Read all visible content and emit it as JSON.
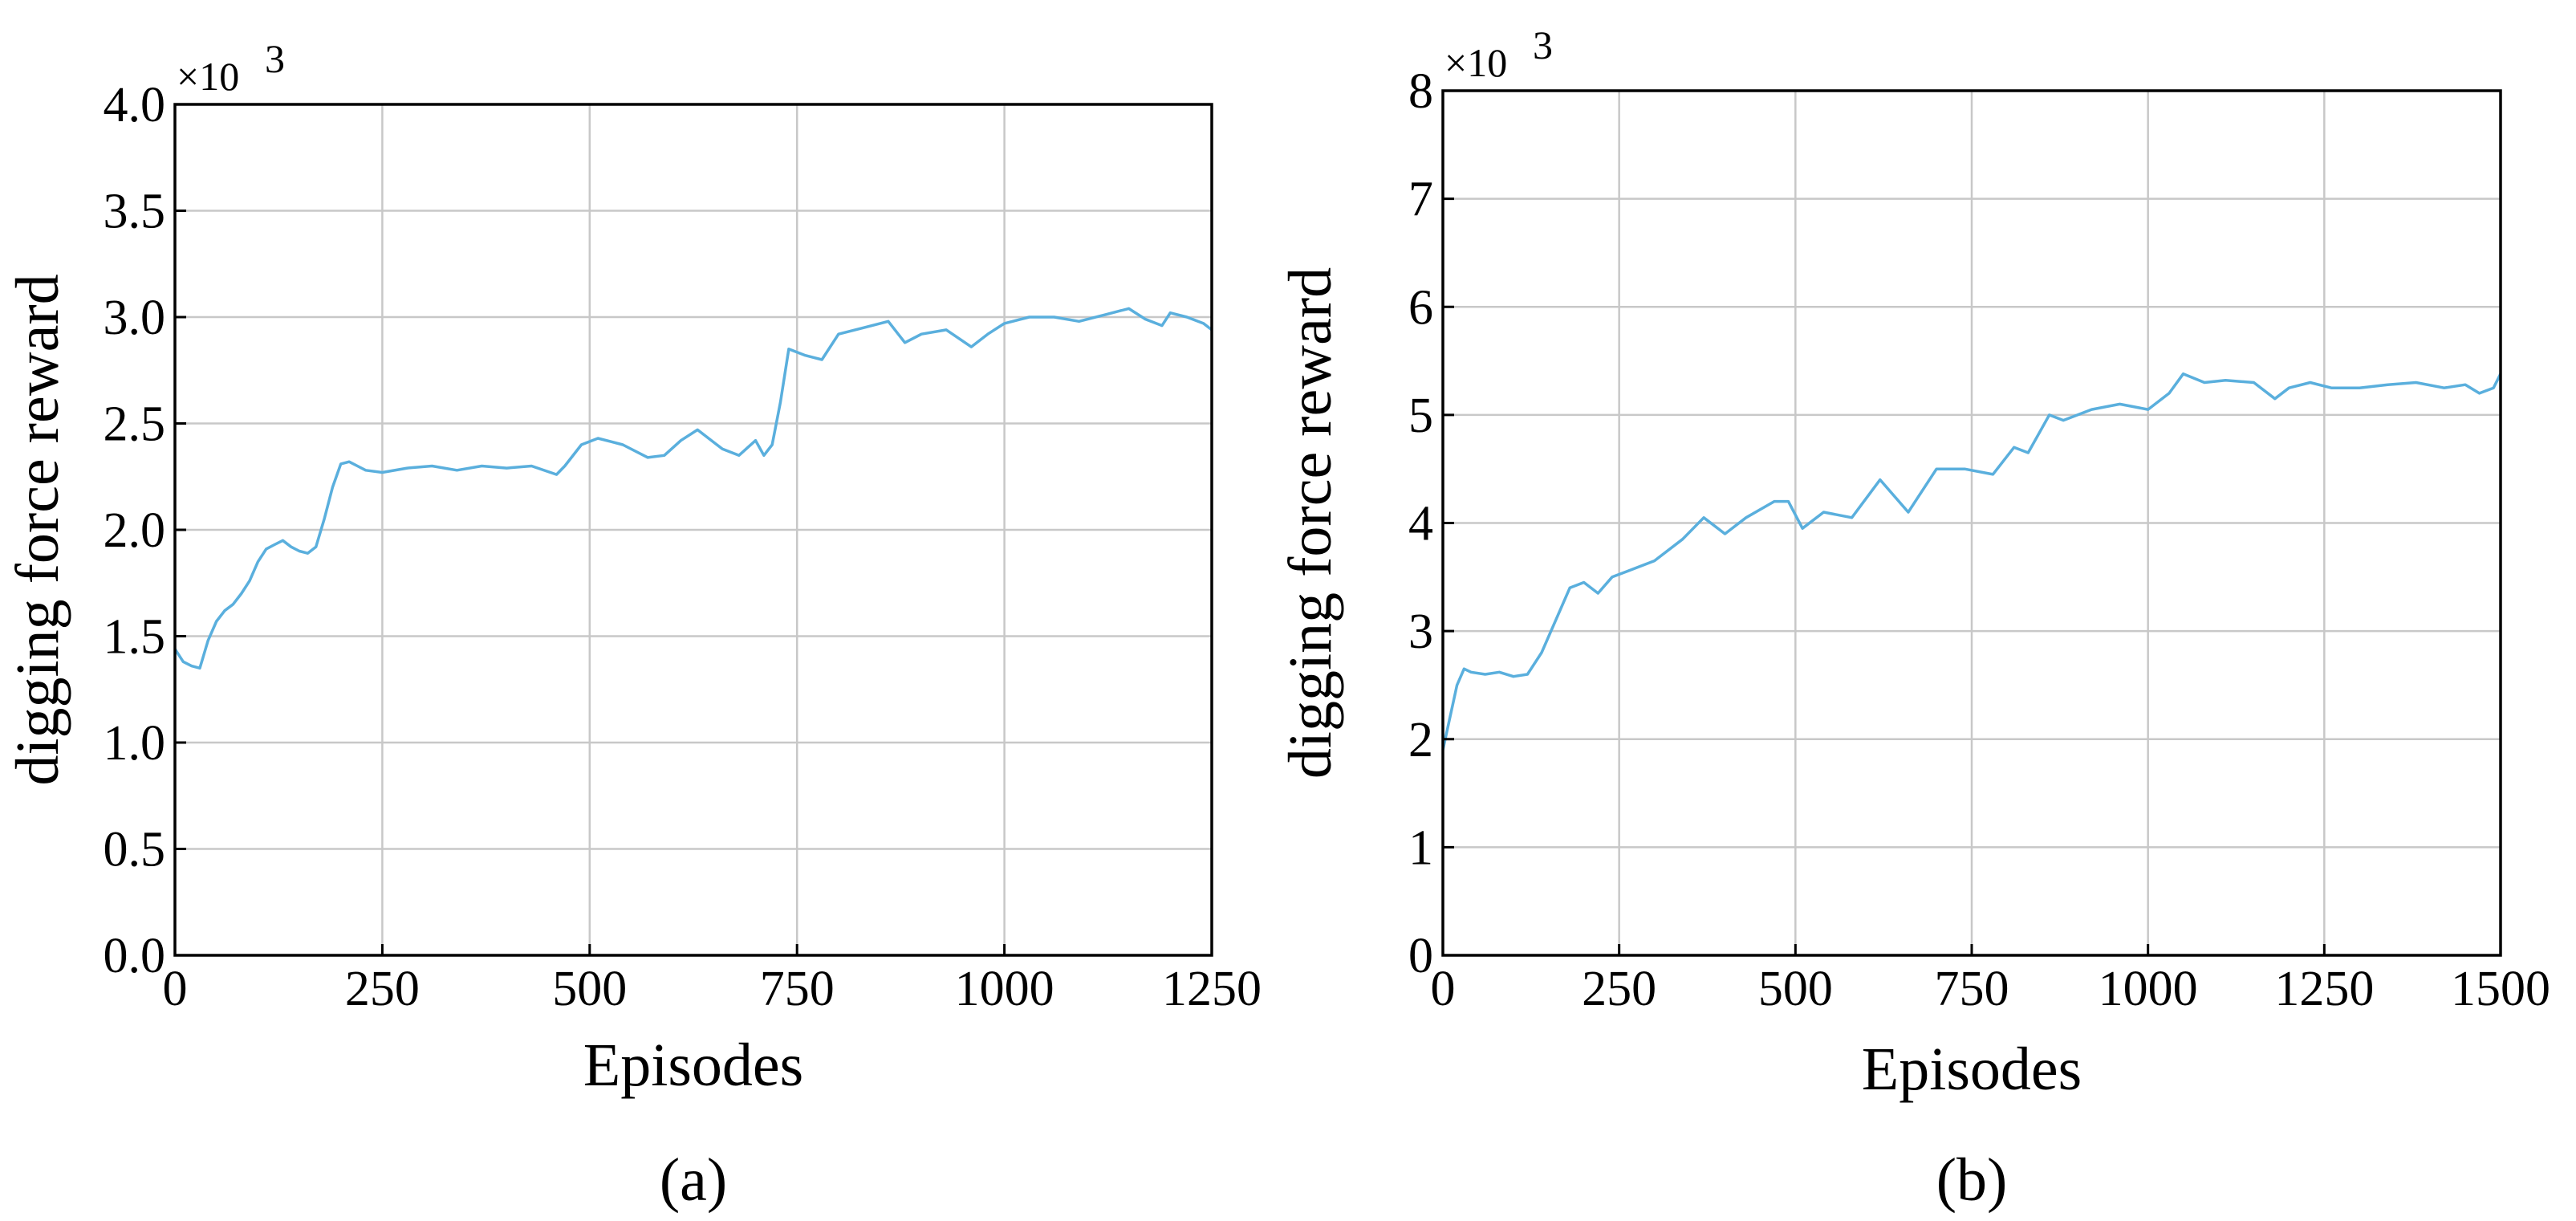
{
  "chart_data": [
    {
      "type": "line",
      "caption": "(a)",
      "xlabel": "Episodes",
      "ylabel": "digging force reward",
      "y_multiplier": "×10",
      "y_multiplier_exp": "3",
      "xlim": [
        0,
        1250
      ],
      "ylim": [
        0,
        4.0
      ],
      "xticks": [
        0,
        250,
        500,
        750,
        1000,
        1250
      ],
      "xtick_labels": [
        "0",
        "250",
        "500",
        "750",
        "1000",
        "1250"
      ],
      "yticks": [
        0,
        0.5,
        1.0,
        1.5,
        2.0,
        2.5,
        3.0,
        3.5,
        4.0
      ],
      "ytick_labels": [
        "0.0",
        "0.5",
        "1.0",
        "1.5",
        "2.0",
        "2.5",
        "3.0",
        "3.5",
        "4.0"
      ],
      "grid": true,
      "color": "#5aafdd",
      "x": [
        0,
        10,
        20,
        30,
        40,
        50,
        60,
        70,
        80,
        90,
        100,
        110,
        120,
        130,
        140,
        150,
        160,
        170,
        180,
        190,
        200,
        210,
        220,
        230,
        250,
        280,
        310,
        340,
        370,
        400,
        430,
        460,
        470,
        490,
        510,
        540,
        570,
        590,
        610,
        630,
        660,
        680,
        700,
        710,
        720,
        730,
        740,
        760,
        780,
        800,
        830,
        860,
        880,
        900,
        930,
        960,
        980,
        1000,
        1030,
        1060,
        1090,
        1120,
        1150,
        1170,
        1190,
        1200,
        1220,
        1240,
        1250
      ],
      "y": [
        1.44,
        1.38,
        1.36,
        1.35,
        1.48,
        1.57,
        1.62,
        1.65,
        1.7,
        1.76,
        1.85,
        1.91,
        1.93,
        1.95,
        1.92,
        1.9,
        1.89,
        1.92,
        2.05,
        2.2,
        2.31,
        2.32,
        2.3,
        2.28,
        2.27,
        2.29,
        2.3,
        2.28,
        2.3,
        2.29,
        2.3,
        2.26,
        2.3,
        2.4,
        2.43,
        2.4,
        2.34,
        2.35,
        2.42,
        2.47,
        2.38,
        2.35,
        2.42,
        2.35,
        2.4,
        2.6,
        2.85,
        2.82,
        2.8,
        2.92,
        2.95,
        2.98,
        2.88,
        2.92,
        2.94,
        2.86,
        2.92,
        2.97,
        3.0,
        3.0,
        2.98,
        3.01,
        3.04,
        2.99,
        2.96,
        3.02,
        3.0,
        2.97,
        2.94
      ]
    },
    {
      "type": "line",
      "caption": "(b)",
      "xlabel": "Episodes",
      "ylabel": "digging force reward",
      "y_multiplier": "×10",
      "y_multiplier_exp": "3",
      "xlim": [
        0,
        1500
      ],
      "ylim": [
        0,
        8
      ],
      "xticks": [
        0,
        250,
        500,
        750,
        1000,
        1250,
        1500
      ],
      "xtick_labels": [
        "0",
        "250",
        "500",
        "750",
        "1000",
        "1250",
        "1500"
      ],
      "yticks": [
        0,
        1,
        2,
        3,
        4,
        5,
        6,
        7,
        8
      ],
      "ytick_labels": [
        "0",
        "1",
        "2",
        "3",
        "4",
        "5",
        "6",
        "7",
        "8"
      ],
      "grid": true,
      "color": "#5aafdd",
      "x": [
        0,
        10,
        20,
        30,
        40,
        60,
        80,
        100,
        120,
        140,
        160,
        180,
        200,
        220,
        240,
        260,
        300,
        340,
        370,
        400,
        430,
        470,
        490,
        510,
        540,
        580,
        620,
        660,
        700,
        740,
        780,
        810,
        830,
        860,
        880,
        920,
        960,
        1000,
        1030,
        1050,
        1080,
        1110,
        1150,
        1180,
        1200,
        1230,
        1260,
        1300,
        1340,
        1380,
        1420,
        1450,
        1470,
        1490,
        1500
      ],
      "y": [
        1.9,
        2.2,
        2.5,
        2.65,
        2.62,
        2.6,
        2.62,
        2.58,
        2.6,
        2.8,
        3.1,
        3.4,
        3.45,
        3.35,
        3.5,
        3.55,
        3.65,
        3.85,
        4.05,
        3.9,
        4.05,
        4.2,
        4.2,
        3.95,
        4.1,
        4.05,
        4.4,
        4.1,
        4.5,
        4.5,
        4.45,
        4.7,
        4.65,
        5.0,
        4.95,
        5.05,
        5.1,
        5.05,
        5.2,
        5.38,
        5.3,
        5.32,
        5.3,
        5.15,
        5.25,
        5.3,
        5.25,
        5.25,
        5.28,
        5.3,
        5.25,
        5.28,
        5.2,
        5.25,
        5.38
      ]
    }
  ]
}
